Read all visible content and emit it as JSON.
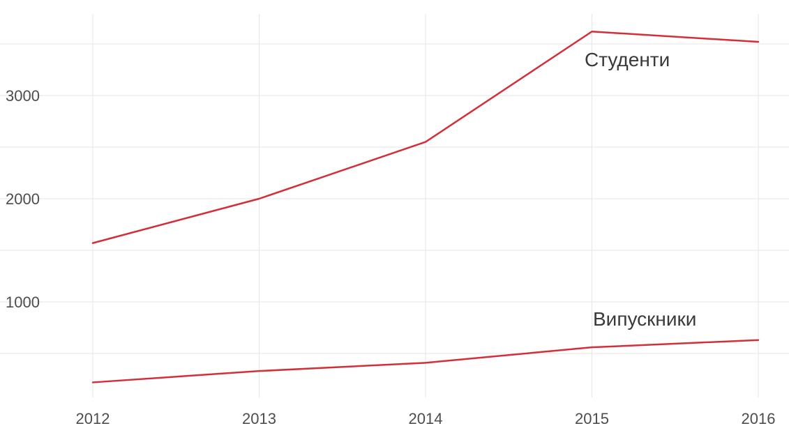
{
  "chart_data": {
    "type": "line",
    "title": "",
    "xlabel": "",
    "ylabel": "",
    "x": [
      2012,
      2013,
      2014,
      2015,
      2016
    ],
    "y_ticks": [
      1000,
      2000,
      3000
    ],
    "xlim": [
      2012,
      2016
    ],
    "ylim": [
      0,
      3800
    ],
    "grid": true,
    "legend": "none",
    "series": [
      {
        "name": "Студенти",
        "values": [
          1570,
          2000,
          2550,
          3620,
          3520
        ],
        "color": "#d32f3a"
      },
      {
        "name": "Випускники",
        "values": [
          220,
          330,
          410,
          560,
          630
        ],
        "color": "#d32f3a"
      }
    ]
  }
}
